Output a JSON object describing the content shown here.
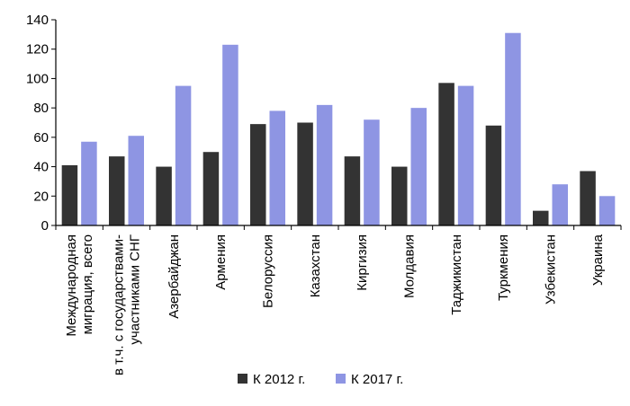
{
  "chart_data": {
    "type": "bar",
    "categories": [
      [
        "Международная",
        "миграция, всего"
      ],
      [
        "в т.ч. с государствами-",
        "участниками СНГ"
      ],
      [
        "Азербайджан"
      ],
      [
        "Армения"
      ],
      [
        "Белоруссия"
      ],
      [
        "Казахстан"
      ],
      [
        "Киргизия"
      ],
      [
        "Молдавия"
      ],
      [
        "Таджикистан"
      ],
      [
        "Туркмения"
      ],
      [
        "Узбекистан"
      ],
      [
        "Украина"
      ]
    ],
    "series": [
      {
        "name": "К 2012 г.",
        "color": "#333333",
        "values": [
          41,
          47,
          40,
          50,
          69,
          70,
          47,
          40,
          97,
          68,
          10,
          37
        ]
      },
      {
        "name": "К 2017 г.",
        "color": "#8e95e3",
        "values": [
          57,
          61,
          95,
          123,
          78,
          82,
          72,
          80,
          95,
          131,
          28,
          20
        ]
      }
    ],
    "yticks": [
      0,
      20,
      40,
      60,
      80,
      100,
      120,
      140
    ],
    "ylim": [
      0,
      140
    ],
    "legend_position": "bottom",
    "grid": false
  }
}
